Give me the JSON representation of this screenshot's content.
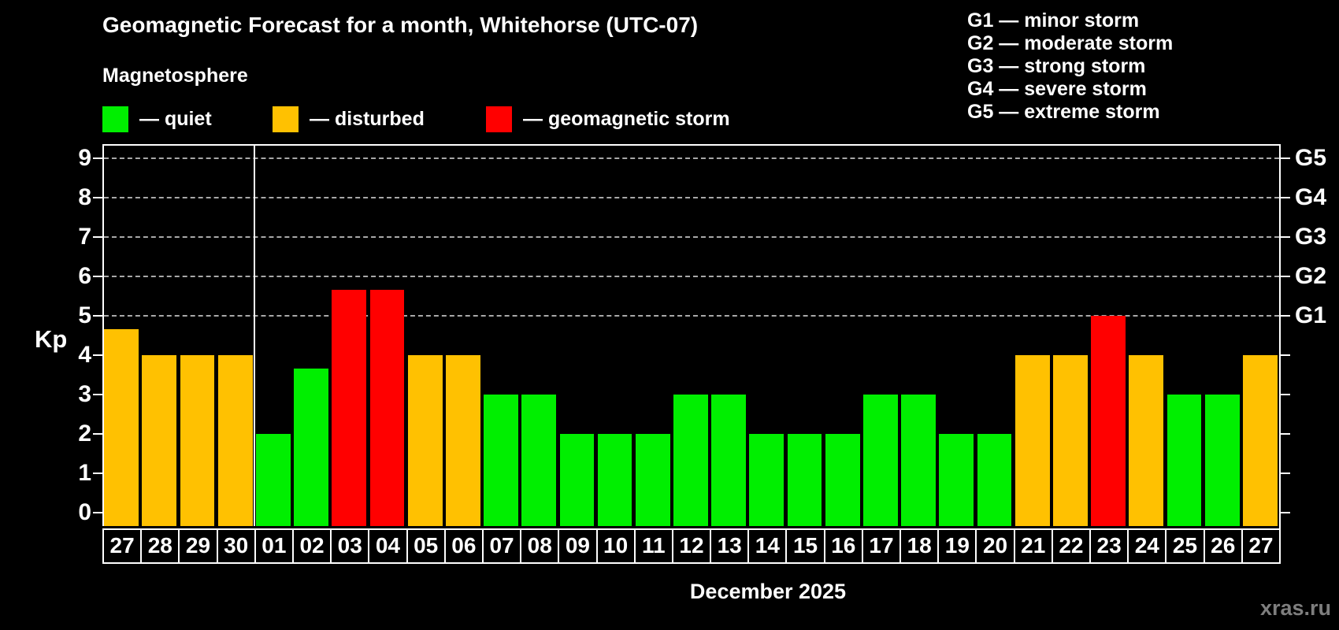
{
  "title": "Geomagnetic Forecast for a month, Whitehorse (UTC-07)",
  "subtitle": "Magnetosphere",
  "ylabel": "Kp",
  "xlabel": "December 2025",
  "watermark": "xras.ru",
  "legend": [
    {
      "key": "quiet",
      "label": "— quiet"
    },
    {
      "key": "disturbed",
      "label": "— disturbed"
    },
    {
      "key": "storm",
      "label": "— geomagnetic storm"
    }
  ],
  "g_legend": [
    "G1 — minor storm",
    "G2 — moderate storm",
    "G3 — strong storm",
    "G4 — severe storm",
    "G5 — extreme storm"
  ],
  "chart_data": {
    "type": "bar",
    "title": "Geomagnetic Forecast for a month, Whitehorse (UTC-07)",
    "xlabel": "December 2025",
    "ylabel": "Kp",
    "ylim": [
      0,
      9.4
    ],
    "yticks": [
      0,
      1,
      2,
      3,
      4,
      5,
      6,
      7,
      8,
      9
    ],
    "gridline_values": [
      5,
      6,
      7,
      8,
      9
    ],
    "grid": "dashed horizontal at Kp 5-9",
    "legend_position": "top",
    "g_scale": [
      {
        "label": "G1",
        "kp": 5
      },
      {
        "label": "G2",
        "kp": 6
      },
      {
        "label": "G3",
        "kp": 7
      },
      {
        "label": "G4",
        "kp": 8
      },
      {
        "label": "G5",
        "kp": 9
      }
    ],
    "status_colors": {
      "quiet": "#00ef00",
      "disturbed": "#ffc101",
      "storm": "#ff0000"
    },
    "month_separator_after_index": 3,
    "days": [
      {
        "date": "27",
        "kp": 4.67,
        "status": "disturbed"
      },
      {
        "date": "28",
        "kp": 4,
        "status": "disturbed"
      },
      {
        "date": "29",
        "kp": 4,
        "status": "disturbed"
      },
      {
        "date": "30",
        "kp": 4,
        "status": "disturbed"
      },
      {
        "date": "01",
        "kp": 2,
        "status": "quiet"
      },
      {
        "date": "02",
        "kp": 3.67,
        "status": "quiet"
      },
      {
        "date": "03",
        "kp": 5.67,
        "status": "storm"
      },
      {
        "date": "04",
        "kp": 5.67,
        "status": "storm"
      },
      {
        "date": "05",
        "kp": 4,
        "status": "disturbed"
      },
      {
        "date": "06",
        "kp": 4,
        "status": "disturbed"
      },
      {
        "date": "07",
        "kp": 3,
        "status": "quiet"
      },
      {
        "date": "08",
        "kp": 3,
        "status": "quiet"
      },
      {
        "date": "09",
        "kp": 2,
        "status": "quiet"
      },
      {
        "date": "10",
        "kp": 2,
        "status": "quiet"
      },
      {
        "date": "11",
        "kp": 2,
        "status": "quiet"
      },
      {
        "date": "12",
        "kp": 3,
        "status": "quiet"
      },
      {
        "date": "13",
        "kp": 3,
        "status": "quiet"
      },
      {
        "date": "14",
        "kp": 2,
        "status": "quiet"
      },
      {
        "date": "15",
        "kp": 2,
        "status": "quiet"
      },
      {
        "date": "16",
        "kp": 2,
        "status": "quiet"
      },
      {
        "date": "17",
        "kp": 3,
        "status": "quiet"
      },
      {
        "date": "18",
        "kp": 3,
        "status": "quiet"
      },
      {
        "date": "19",
        "kp": 2,
        "status": "quiet"
      },
      {
        "date": "20",
        "kp": 2,
        "status": "quiet"
      },
      {
        "date": "21",
        "kp": 4,
        "status": "disturbed"
      },
      {
        "date": "22",
        "kp": 4,
        "status": "disturbed"
      },
      {
        "date": "23",
        "kp": 5,
        "status": "storm"
      },
      {
        "date": "24",
        "kp": 4,
        "status": "disturbed"
      },
      {
        "date": "25",
        "kp": 3,
        "status": "quiet"
      },
      {
        "date": "26",
        "kp": 3,
        "status": "quiet"
      },
      {
        "date": "27",
        "kp": 4,
        "status": "disturbed"
      }
    ]
  }
}
